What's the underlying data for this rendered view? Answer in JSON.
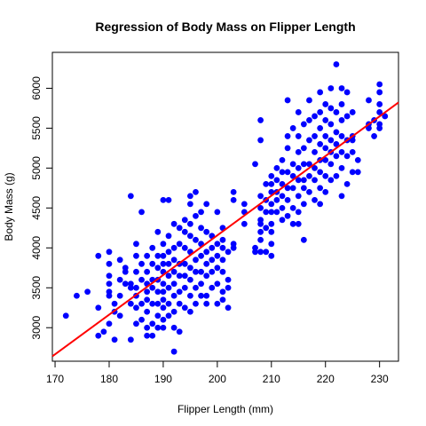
{
  "chart_data": {
    "type": "scatter",
    "title": "Regression of Body Mass on Flipper Length",
    "xlabel": "Flipper Length (mm)",
    "ylabel": "Body Mass (g)",
    "xlim": [
      169.5,
      233.5
    ],
    "ylim": [
      2580,
      6450
    ],
    "x_ticks": [
      170,
      180,
      190,
      200,
      210,
      220,
      230
    ],
    "y_ticks": [
      3000,
      3500,
      4000,
      4500,
      5000,
      5500,
      6000
    ],
    "grid": false,
    "legend": "none",
    "point_color": "#0000FF",
    "line_color": "#FF0000",
    "regression": {
      "intercept": -5780.8,
      "slope": 49.69
    },
    "points": [
      [
        172,
        3150
      ],
      [
        174,
        3400
      ],
      [
        176,
        3450
      ],
      [
        178,
        3900
      ],
      [
        178,
        3250
      ],
      [
        178,
        2900
      ],
      [
        179,
        2950
      ],
      [
        180,
        3950
      ],
      [
        180,
        3800
      ],
      [
        180,
        3650
      ],
      [
        180,
        3550
      ],
      [
        180,
        3450
      ],
      [
        180,
        3400
      ],
      [
        180,
        3050
      ],
      [
        181,
        3300
      ],
      [
        181,
        3200
      ],
      [
        181,
        2850
      ],
      [
        182,
        3150
      ],
      [
        182,
        3400
      ],
      [
        182,
        3600
      ],
      [
        182,
        3850
      ],
      [
        183,
        3750
      ],
      [
        183,
        3700
      ],
      [
        183,
        3550
      ],
      [
        184,
        3550
      ],
      [
        184,
        3500
      ],
      [
        184,
        3300
      ],
      [
        184,
        2850
      ],
      [
        184,
        4650
      ],
      [
        185,
        4050
      ],
      [
        185,
        3900
      ],
      [
        185,
        3700
      ],
      [
        185,
        3500
      ],
      [
        185,
        3400
      ],
      [
        185,
        3250
      ],
      [
        185,
        3050
      ],
      [
        186,
        3100
      ],
      [
        186,
        3300
      ],
      [
        186,
        3600
      ],
      [
        186,
        3800
      ],
      [
        186,
        4450
      ],
      [
        187,
        3900
      ],
      [
        187,
        3700
      ],
      [
        187,
        3550
      ],
      [
        187,
        3450
      ],
      [
        187,
        3350
      ],
      [
        187,
        3200
      ],
      [
        187,
        3000
      ],
      [
        187,
        2900
      ],
      [
        188,
        2900
      ],
      [
        188,
        3050
      ],
      [
        188,
        3300
      ],
      [
        188,
        3500
      ],
      [
        188,
        3600
      ],
      [
        188,
        3800
      ],
      [
        188,
        4000
      ],
      [
        189,
        3900
      ],
      [
        189,
        3750
      ],
      [
        189,
        3600
      ],
      [
        189,
        3450
      ],
      [
        189,
        3300
      ],
      [
        189,
        3150
      ],
      [
        189,
        3000
      ],
      [
        189,
        4200
      ],
      [
        190,
        4600
      ],
      [
        190,
        4050
      ],
      [
        190,
        3900
      ],
      [
        190,
        3800
      ],
      [
        190,
        3700
      ],
      [
        190,
        3550
      ],
      [
        190,
        3450
      ],
      [
        190,
        3350
      ],
      [
        190,
        3250
      ],
      [
        190,
        3100
      ],
      [
        190,
        3000
      ],
      [
        191,
        4600
      ],
      [
        191,
        4150
      ],
      [
        191,
        3950
      ],
      [
        191,
        3800
      ],
      [
        191,
        3650
      ],
      [
        191,
        3500
      ],
      [
        191,
        3300
      ],
      [
        191,
        3150
      ],
      [
        192,
        2700
      ],
      [
        192,
        3000
      ],
      [
        192,
        3200
      ],
      [
        192,
        3400
      ],
      [
        192,
        3550
      ],
      [
        192,
        3700
      ],
      [
        192,
        3850
      ],
      [
        192,
        4000
      ],
      [
        192,
        4300
      ],
      [
        193,
        4250
      ],
      [
        193,
        4050
      ],
      [
        193,
        3800
      ],
      [
        193,
        3650
      ],
      [
        193,
        3450
      ],
      [
        193,
        3300
      ],
      [
        193,
        2950
      ],
      [
        194,
        4350
      ],
      [
        194,
        4200
      ],
      [
        194,
        4000
      ],
      [
        194,
        3800
      ],
      [
        194,
        3650
      ],
      [
        194,
        3500
      ],
      [
        194,
        3250
      ],
      [
        195,
        4650
      ],
      [
        195,
        4550
      ],
      [
        195,
        4300
      ],
      [
        195,
        4150
      ],
      [
        195,
        3950
      ],
      [
        195,
        3750
      ],
      [
        195,
        3600
      ],
      [
        195,
        3400
      ],
      [
        195,
        3200
      ],
      [
        196,
        4700
      ],
      [
        196,
        4400
      ],
      [
        196,
        4100
      ],
      [
        196,
        3850
      ],
      [
        196,
        3700
      ],
      [
        196,
        3500
      ],
      [
        196,
        3300
      ],
      [
        197,
        4450
      ],
      [
        197,
        4250
      ],
      [
        197,
        4050
      ],
      [
        197,
        3900
      ],
      [
        197,
        3700
      ],
      [
        197,
        3550
      ],
      [
        197,
        3400
      ],
      [
        198,
        4550
      ],
      [
        198,
        4200
      ],
      [
        198,
        3950
      ],
      [
        198,
        3800
      ],
      [
        198,
        3650
      ],
      [
        198,
        3400
      ],
      [
        198,
        3300
      ],
      [
        199,
        4150
      ],
      [
        199,
        4000
      ],
      [
        199,
        3850
      ],
      [
        199,
        3700
      ],
      [
        199,
        3500
      ],
      [
        200,
        4450
      ],
      [
        200,
        4050
      ],
      [
        200,
        3900
      ],
      [
        200,
        3750
      ],
      [
        200,
        3550
      ],
      [
        200,
        3300
      ],
      [
        201,
        4250
      ],
      [
        201,
        4100
      ],
      [
        201,
        4000
      ],
      [
        201,
        3850
      ],
      [
        201,
        3700
      ],
      [
        201,
        3450
      ],
      [
        201,
        3350
      ],
      [
        202,
        3950
      ],
      [
        202,
        3600
      ],
      [
        202,
        3500
      ],
      [
        202,
        3250
      ],
      [
        203,
        4700
      ],
      [
        203,
        4600
      ],
      [
        203,
        4050
      ],
      [
        203,
        4000
      ],
      [
        205,
        4550
      ],
      [
        205,
        4450
      ],
      [
        205,
        4300
      ],
      [
        207,
        5050
      ],
      [
        207,
        4000
      ],
      [
        207,
        3950
      ],
      [
        208,
        5350
      ],
      [
        208,
        5600
      ],
      [
        208,
        4650
      ],
      [
        208,
        4500
      ],
      [
        208,
        4350
      ],
      [
        208,
        4300
      ],
      [
        208,
        4200
      ],
      [
        208,
        4100
      ],
      [
        208,
        3950
      ],
      [
        209,
        4800
      ],
      [
        209,
        4600
      ],
      [
        209,
        4450
      ],
      [
        209,
        4250
      ],
      [
        209,
        3950
      ],
      [
        210,
        4900
      ],
      [
        210,
        4800
      ],
      [
        210,
        4700
      ],
      [
        210,
        4550
      ],
      [
        210,
        4450
      ],
      [
        210,
        4300
      ],
      [
        210,
        4200
      ],
      [
        210,
        4050
      ],
      [
        210,
        3900
      ],
      [
        211,
        5000
      ],
      [
        211,
        4850
      ],
      [
        211,
        4700
      ],
      [
        211,
        4600
      ],
      [
        211,
        4450
      ],
      [
        212,
        5100
      ],
      [
        212,
        4950
      ],
      [
        212,
        4800
      ],
      [
        212,
        4650
      ],
      [
        212,
        4500
      ],
      [
        212,
        4350
      ],
      [
        213,
        5400
      ],
      [
        213,
        5250
      ],
      [
        213,
        5850
      ],
      [
        213,
        4950
      ],
      [
        213,
        4750
      ],
      [
        213,
        4600
      ],
      [
        213,
        4400
      ],
      [
        214,
        5500
      ],
      [
        214,
        5050
      ],
      [
        214,
        4900
      ],
      [
        214,
        4750
      ],
      [
        214,
        4500
      ],
      [
        214,
        4300
      ],
      [
        215,
        5700
      ],
      [
        215,
        5400
      ],
      [
        215,
        5200
      ],
      [
        215,
        5000
      ],
      [
        215,
        4850
      ],
      [
        215,
        4650
      ],
      [
        215,
        4450
      ],
      [
        215,
        4300
      ],
      [
        216,
        5550
      ],
      [
        216,
        5250
      ],
      [
        216,
        5050
      ],
      [
        216,
        4850
      ],
      [
        216,
        4750
      ],
      [
        216,
        4550
      ],
      [
        216,
        4100
      ],
      [
        217,
        5850
      ],
      [
        217,
        5600
      ],
      [
        217,
        5350
      ],
      [
        217,
        5050
      ],
      [
        217,
        4900
      ],
      [
        217,
        4700
      ],
      [
        218,
        5650
      ],
      [
        218,
        5400
      ],
      [
        218,
        5200
      ],
      [
        218,
        5000
      ],
      [
        218,
        4850
      ],
      [
        218,
        4600
      ],
      [
        219,
        5950
      ],
      [
        219,
        5700
      ],
      [
        219,
        5500
      ],
      [
        219,
        5300
      ],
      [
        219,
        5100
      ],
      [
        219,
        4950
      ],
      [
        219,
        4750
      ],
      [
        219,
        4550
      ],
      [
        220,
        5800
      ],
      [
        220,
        5600
      ],
      [
        220,
        5400
      ],
      [
        220,
        5250
      ],
      [
        220,
        5100
      ],
      [
        220,
        4900
      ],
      [
        220,
        4700
      ],
      [
        221,
        6000
      ],
      [
        221,
        5750
      ],
      [
        221,
        5550
      ],
      [
        221,
        5350
      ],
      [
        221,
        5200
      ],
      [
        221,
        5050
      ],
      [
        221,
        4850
      ],
      [
        222,
        6300
      ],
      [
        222,
        5700
      ],
      [
        222,
        5450
      ],
      [
        222,
        5300
      ],
      [
        222,
        5150
      ],
      [
        222,
        4900
      ],
      [
        223,
        6000
      ],
      [
        223,
        5800
      ],
      [
        223,
        5600
      ],
      [
        223,
        5400
      ],
      [
        223,
        5200
      ],
      [
        223,
        5000
      ],
      [
        223,
        4650
      ],
      [
        224,
        5950
      ],
      [
        224,
        5650
      ],
      [
        224,
        5350
      ],
      [
        224,
        5150
      ],
      [
        224,
        4800
      ],
      [
        225,
        5700
      ],
      [
        225,
        5400
      ],
      [
        225,
        5200
      ],
      [
        225,
        4950
      ],
      [
        225,
        5350
      ],
      [
        226,
        5100
      ],
      [
        226,
        4950
      ],
      [
        228,
        5850
      ],
      [
        228,
        5550
      ],
      [
        228,
        5500
      ],
      [
        229,
        5600
      ],
      [
        229,
        5400
      ],
      [
        230,
        6050
      ],
      [
        230,
        5950
      ],
      [
        230,
        5800
      ],
      [
        230,
        5700
      ],
      [
        230,
        5550
      ],
      [
        230,
        5500
      ],
      [
        231,
        5650
      ]
    ]
  }
}
